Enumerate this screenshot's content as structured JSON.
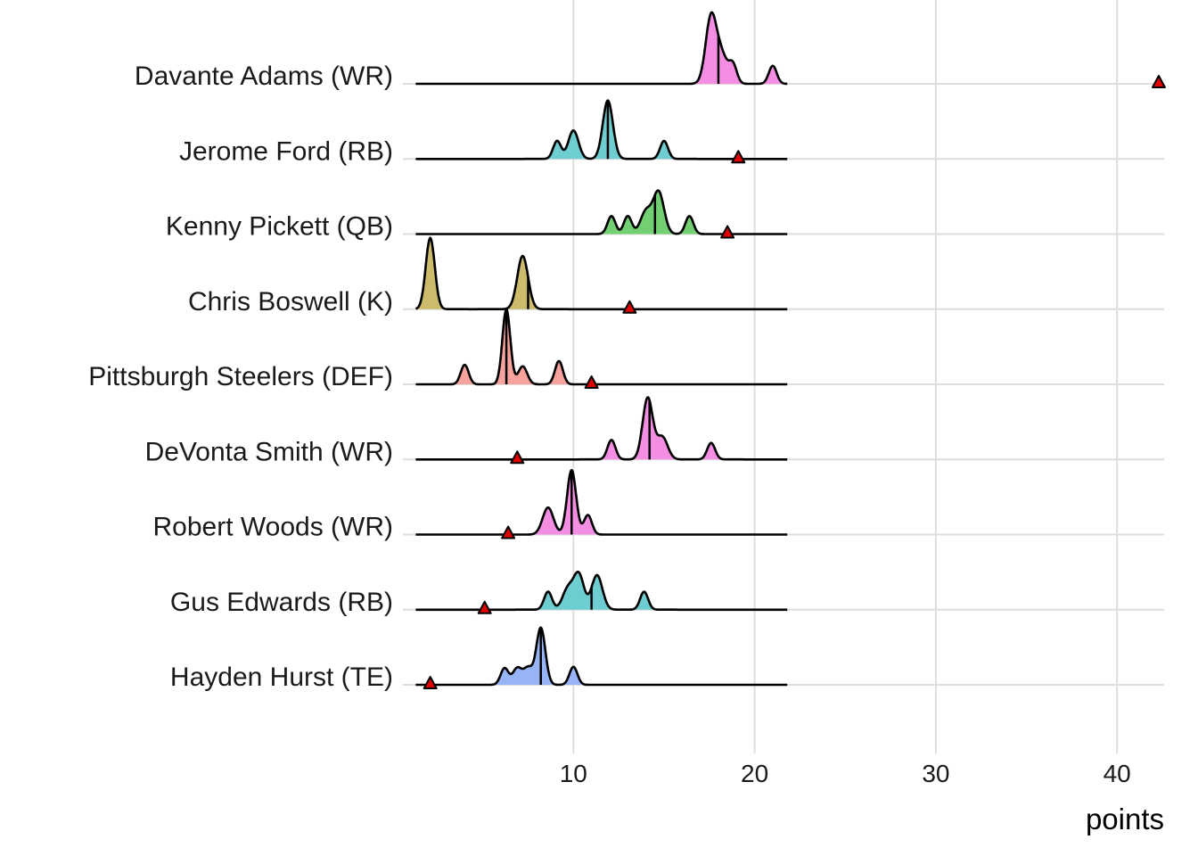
{
  "chart_data": {
    "type": "ridgeline",
    "xlabel": "points",
    "ylabel": "",
    "xlim": [
      0,
      42.6
    ],
    "density_range": [
      1.3,
      21.8
    ],
    "xticks": [
      10,
      20,
      30,
      40
    ],
    "tick_labels": [
      "10",
      "20",
      "30",
      "40"
    ],
    "grid": true,
    "marker_color": "#e00000",
    "series": [
      {
        "name": "Davante Adams (WR)",
        "color": "#f38ee3",
        "median": 18.0,
        "marker": 42.3,
        "peaks": [
          [
            17.6,
            0.9,
            0.3
          ],
          [
            18.2,
            0.35,
            0.3
          ],
          [
            18.8,
            0.25,
            0.22
          ],
          [
            21.0,
            0.24,
            0.22
          ]
        ]
      },
      {
        "name": "Jerome Ford (RB)",
        "color": "#6dcdd0",
        "median": 11.9,
        "marker": 19.1,
        "peaks": [
          [
            9.1,
            0.24,
            0.22
          ],
          [
            10.0,
            0.38,
            0.28
          ],
          [
            11.9,
            0.78,
            0.28
          ],
          [
            15.0,
            0.24,
            0.22
          ]
        ]
      },
      {
        "name": "Kenny Pickett (QB)",
        "color": "#72cf72",
        "median": 14.5,
        "marker": 18.5,
        "peaks": [
          [
            12.1,
            0.24,
            0.22
          ],
          [
            13.0,
            0.24,
            0.22
          ],
          [
            14.0,
            0.3,
            0.3
          ],
          [
            14.7,
            0.56,
            0.3
          ],
          [
            16.4,
            0.24,
            0.22
          ]
        ]
      },
      {
        "name": "Chris Boswell (K)",
        "color": "#cbbb6a",
        "median": 7.5,
        "marker": 13.1,
        "peaks": [
          [
            2.1,
            0.95,
            0.25
          ],
          [
            7.2,
            0.71,
            0.3
          ]
        ]
      },
      {
        "name": "Pittsburgh Steelers (DEF)",
        "color": "#f7a29c",
        "median": 6.3,
        "marker": 11.0,
        "peaks": [
          [
            4.0,
            0.26,
            0.22
          ],
          [
            6.3,
            1.0,
            0.22
          ],
          [
            7.2,
            0.24,
            0.25
          ],
          [
            9.2,
            0.31,
            0.22
          ]
        ]
      },
      {
        "name": "DeVonta Smith (WR)",
        "color": "#f38ee3",
        "median": 14.2,
        "marker": 6.9,
        "peaks": [
          [
            12.1,
            0.26,
            0.22
          ],
          [
            14.1,
            0.82,
            0.28
          ],
          [
            14.9,
            0.3,
            0.3
          ],
          [
            17.6,
            0.22,
            0.22
          ]
        ]
      },
      {
        "name": "Robert Woods (WR)",
        "color": "#f38ee3",
        "median": 9.9,
        "marker": 6.4,
        "peaks": [
          [
            8.6,
            0.36,
            0.3
          ],
          [
            9.9,
            0.86,
            0.25
          ],
          [
            10.8,
            0.26,
            0.22
          ]
        ]
      },
      {
        "name": "Gus Edwards (RB)",
        "color": "#6dcdd0",
        "median": 11.0,
        "marker": 5.1,
        "peaks": [
          [
            8.6,
            0.24,
            0.22
          ],
          [
            9.7,
            0.28,
            0.3
          ],
          [
            10.3,
            0.46,
            0.28
          ],
          [
            11.3,
            0.46,
            0.3
          ],
          [
            13.9,
            0.24,
            0.22
          ]
        ]
      },
      {
        "name": "Hayden Hurst (TE)",
        "color": "#97b4f6",
        "median": 8.2,
        "marker": 2.1,
        "peaks": [
          [
            6.2,
            0.22,
            0.22
          ],
          [
            6.9,
            0.22,
            0.25
          ],
          [
            7.5,
            0.22,
            0.25
          ],
          [
            8.2,
            0.76,
            0.25
          ],
          [
            10.0,
            0.24,
            0.22
          ]
        ]
      }
    ]
  }
}
